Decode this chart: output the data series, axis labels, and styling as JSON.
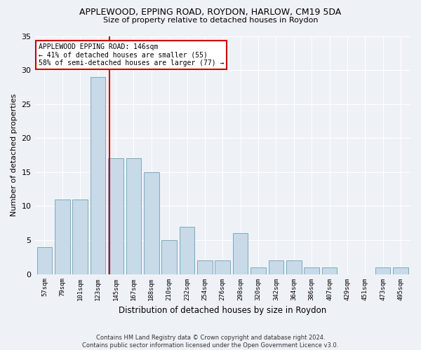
{
  "title1": "APPLEWOOD, EPPING ROAD, ROYDON, HARLOW, CM19 5DA",
  "title2": "Size of property relative to detached houses in Roydon",
  "xlabel": "Distribution of detached houses by size in Roydon",
  "ylabel": "Number of detached properties",
  "categories": [
    "57sqm",
    "79sqm",
    "101sqm",
    "123sqm",
    "145sqm",
    "167sqm",
    "188sqm",
    "210sqm",
    "232sqm",
    "254sqm",
    "276sqm",
    "298sqm",
    "320sqm",
    "342sqm",
    "364sqm",
    "386sqm",
    "407sqm",
    "429sqm",
    "451sqm",
    "473sqm",
    "495sqm"
  ],
  "values": [
    4,
    11,
    11,
    29,
    17,
    17,
    15,
    5,
    7,
    2,
    2,
    6,
    1,
    2,
    2,
    1,
    1,
    0,
    0,
    1,
    1
  ],
  "bar_color": "#c8d9e8",
  "bar_edge_color": "#7aaabf",
  "vline_index": 4,
  "vline_color": "#cc0000",
  "annotation_box_color": "#ffffff",
  "annotation_box_edge": "#cc0000",
  "marker_label": "APPLEWOOD EPPING ROAD: 146sqm",
  "marker_line1": "← 41% of detached houses are smaller (55)",
  "marker_line2": "58% of semi-detached houses are larger (77) →",
  "footer1": "Contains HM Land Registry data © Crown copyright and database right 2024.",
  "footer2": "Contains public sector information licensed under the Open Government Licence v3.0.",
  "ylim": [
    0,
    35
  ],
  "yticks": [
    0,
    5,
    10,
    15,
    20,
    25,
    30,
    35
  ],
  "bg_color": "#eef2f7",
  "plot_bg_color": "#eef2f7"
}
